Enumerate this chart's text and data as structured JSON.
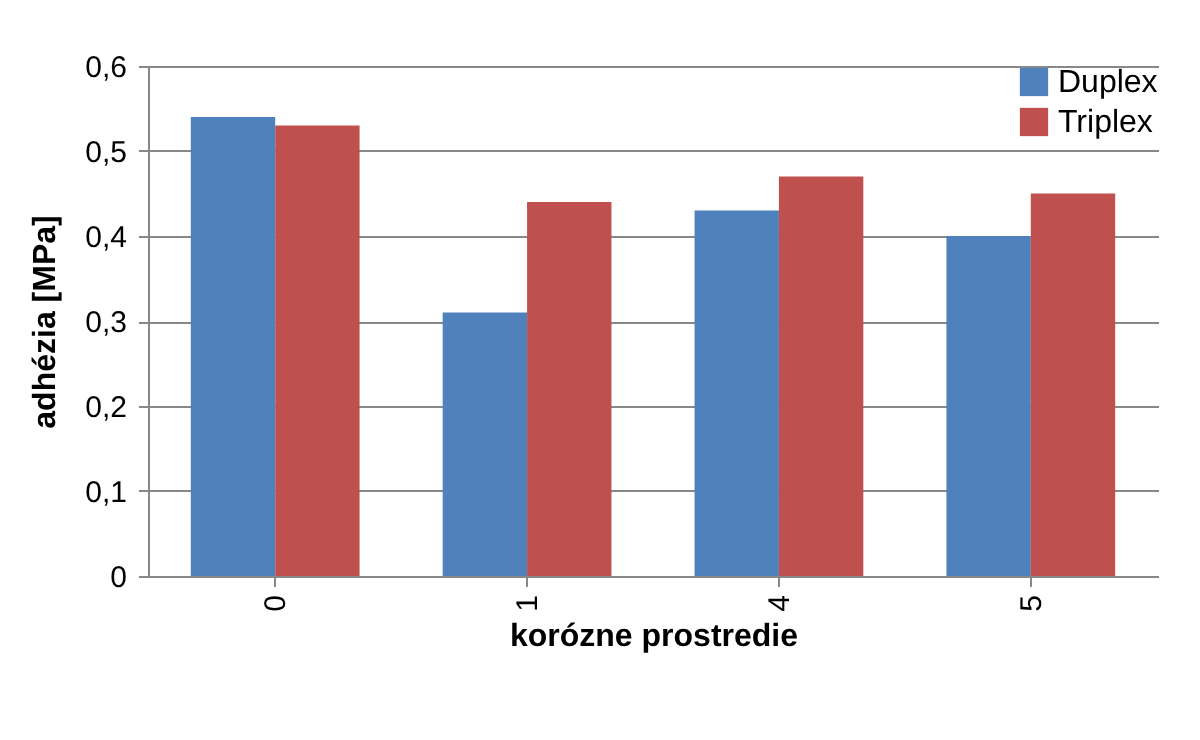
{
  "chart_data": {
    "type": "bar",
    "xlabel": "korózne prostredie",
    "ylabel": "adhézia [MPa]",
    "categories": [
      "0",
      "1",
      "4",
      "5"
    ],
    "series": [
      {
        "name": "Duplex",
        "color": "#4f81bd",
        "values": [
          0.54,
          0.31,
          0.43,
          0.4
        ]
      },
      {
        "name": "Triplex",
        "color": "#c0504d",
        "values": [
          0.53,
          0.44,
          0.47,
          0.45
        ]
      }
    ],
    "ylim": [
      0,
      0.6
    ],
    "yticks": [
      0,
      {
        "value": 0.1,
        "label": "0,1"
      },
      {
        "value": 0.2,
        "label": "0,2"
      },
      {
        "value": 0.3,
        "label": "0,3"
      },
      {
        "value": 0.4,
        "label": "0,4"
      },
      {
        "value": 0.5,
        "label": "0,5"
      },
      {
        "value": 0.6,
        "label": "0,6"
      }
    ],
    "grid": "y",
    "legend": "top right"
  }
}
